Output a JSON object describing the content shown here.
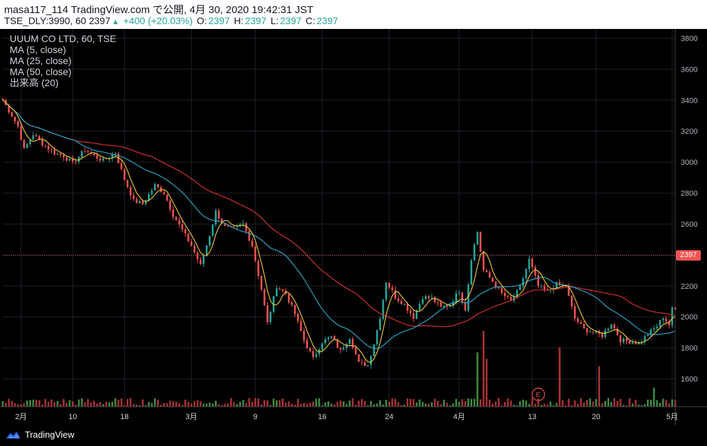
{
  "header": {
    "line1": "masa117_114 TradingView.com で公開, 4月 30, 2020 19:42:31 JST",
    "symbol_prefix": "TSE_DLY:3990, 60 2397",
    "change": "+400 (+20.03%)",
    "o_label": "O:",
    "o_value": "2397",
    "h_label": "H:",
    "h_value": "2397",
    "l_label": "L:",
    "l_value": "2397",
    "c_label": "C:",
    "c_value": "2397"
  },
  "legend": {
    "title": "UUUM CO LTD, 60, TSE",
    "ma5": "MA (5, close)",
    "ma25": "MA (25, close)",
    "ma50": "MA (50, close)",
    "volume": "出来高 (20)"
  },
  "brand": {
    "name": "TradingView"
  },
  "price_tag": "2397",
  "earnings_marker": "E",
  "colors": {
    "up": "#26a69a",
    "down": "#ef5350",
    "ma5": "#e5c23a",
    "ma25": "#29a6c9",
    "ma50": "#d6312f",
    "grid": "#1e222d",
    "vol_up": "#3d8b3d",
    "vol_down": "#a83232"
  },
  "chart_data": {
    "type": "candlestick",
    "title": "UUUM CO LTD, 60, TSE",
    "ylim": [
      1420,
      3860
    ],
    "y_ticks": [
      1600,
      1800,
      2000,
      2200,
      2400,
      2600,
      2800,
      3000,
      3200,
      3400,
      3600,
      3800
    ],
    "x_ticks": [
      "2月",
      "10",
      "18",
      "3月",
      "9",
      "16",
      "24",
      "4月",
      "13",
      "20",
      "5月"
    ],
    "last_price": 2397,
    "price_path": [
      [
        0,
        3400
      ],
      [
        3,
        3300
      ],
      [
        5,
        3230
      ],
      [
        7,
        3080
      ],
      [
        10,
        3180
      ],
      [
        13,
        3120
      ],
      [
        17,
        3060
      ],
      [
        20,
        3040
      ],
      [
        23,
        2990
      ],
      [
        27,
        3080
      ],
      [
        30,
        3040
      ],
      [
        33,
        3010
      ],
      [
        37,
        3060
      ],
      [
        40,
        2890
      ],
      [
        43,
        2750
      ],
      [
        46,
        2730
      ],
      [
        50,
        2850
      ],
      [
        53,
        2800
      ],
      [
        56,
        2660
      ],
      [
        59,
        2560
      ],
      [
        62,
        2460
      ],
      [
        65,
        2330
      ],
      [
        68,
        2530
      ],
      [
        70,
        2680
      ],
      [
        73,
        2580
      ],
      [
        76,
        2570
      ],
      [
        79,
        2600
      ],
      [
        82,
        2460
      ],
      [
        85,
        2180
      ],
      [
        87,
        1960
      ],
      [
        90,
        2200
      ],
      [
        93,
        2150
      ],
      [
        96,
        2020
      ],
      [
        99,
        1850
      ],
      [
        102,
        1730
      ],
      [
        105,
        1840
      ],
      [
        108,
        1870
      ],
      [
        111,
        1780
      ],
      [
        114,
        1870
      ],
      [
        117,
        1700
      ],
      [
        120,
        1690
      ],
      [
        122,
        1830
      ],
      [
        124,
        2000
      ],
      [
        126,
        2230
      ],
      [
        129,
        2130
      ],
      [
        132,
        2080
      ],
      [
        135,
        2000
      ],
      [
        138,
        2130
      ],
      [
        141,
        2120
      ],
      [
        144,
        2060
      ],
      [
        147,
        2080
      ],
      [
        150,
        2170
      ],
      [
        152,
        2050
      ],
      [
        154,
        2380
      ],
      [
        156,
        2550
      ],
      [
        158,
        2300
      ],
      [
        161,
        2230
      ],
      [
        164,
        2150
      ],
      [
        167,
        2100
      ],
      [
        170,
        2190
      ],
      [
        173,
        2370
      ],
      [
        176,
        2200
      ],
      [
        179,
        2160
      ],
      [
        182,
        2210
      ],
      [
        185,
        2200
      ],
      [
        188,
        1990
      ],
      [
        191,
        1920
      ],
      [
        194,
        1900
      ],
      [
        197,
        1880
      ],
      [
        200,
        1960
      ],
      [
        203,
        1850
      ],
      [
        206,
        1840
      ],
      [
        209,
        1830
      ],
      [
        212,
        1890
      ],
      [
        215,
        1940
      ],
      [
        217,
        2000
      ],
      [
        219,
        1950
      ],
      [
        220,
        2050
      ]
    ],
    "volume_spikes": [
      [
        156,
        430
      ],
      [
        158,
        600
      ],
      [
        159,
        380
      ],
      [
        183,
        470
      ],
      [
        196,
        320
      ],
      [
        214,
        150
      ]
    ]
  }
}
